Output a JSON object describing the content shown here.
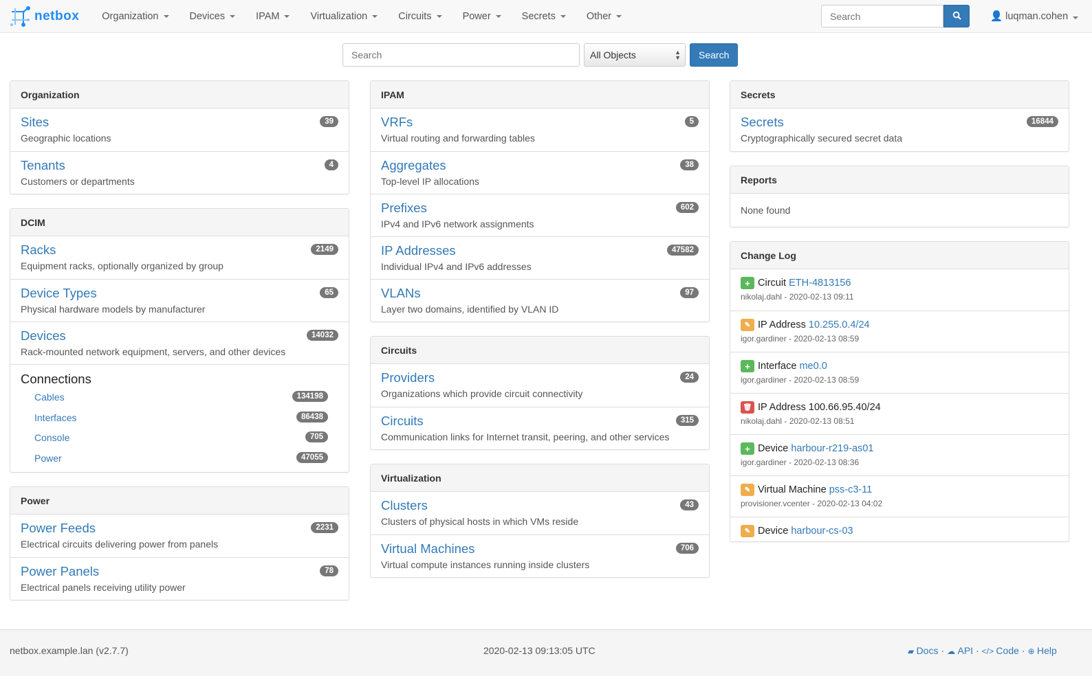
{
  "nav": {
    "brand": "netbox",
    "items": [
      "Organization",
      "Devices",
      "IPAM",
      "Virtualization",
      "Circuits",
      "Power",
      "Secrets",
      "Other"
    ],
    "search_placeholder": "Search",
    "user": "luqman.cohen"
  },
  "search": {
    "placeholder": "Search",
    "scope": "All Objects",
    "button": "Search"
  },
  "columns": [
    [
      {
        "title": "Organization",
        "items": [
          {
            "label": "Sites",
            "desc": "Geographic locations",
            "count": "39"
          },
          {
            "label": "Tenants",
            "desc": "Customers or departments",
            "count": "4"
          }
        ]
      },
      {
        "title": "DCIM",
        "items": [
          {
            "label": "Racks",
            "desc": "Equipment racks, optionally organized by group",
            "count": "2149"
          },
          {
            "label": "Device Types",
            "desc": "Physical hardware models by manufacturer",
            "count": "65"
          },
          {
            "label": "Devices",
            "desc": "Rack-mounted network equipment, servers, and other devices",
            "count": "14032"
          }
        ],
        "connections": {
          "title": "Connections",
          "items": [
            {
              "label": "Cables",
              "count": "134198"
            },
            {
              "label": "Interfaces",
              "count": "86438"
            },
            {
              "label": "Console",
              "count": "705"
            },
            {
              "label": "Power",
              "count": "47055"
            }
          ]
        }
      },
      {
        "title": "Power",
        "items": [
          {
            "label": "Power Feeds",
            "desc": "Electrical circuits delivering power from panels",
            "count": "2231"
          },
          {
            "label": "Power Panels",
            "desc": "Electrical panels receiving utility power",
            "count": "78"
          }
        ]
      }
    ],
    [
      {
        "title": "IPAM",
        "items": [
          {
            "label": "VRFs",
            "desc": "Virtual routing and forwarding tables",
            "count": "5"
          },
          {
            "label": "Aggregates",
            "desc": "Top-level IP allocations",
            "count": "38"
          },
          {
            "label": "Prefixes",
            "desc": "IPv4 and IPv6 network assignments",
            "count": "602"
          },
          {
            "label": "IP Addresses",
            "desc": "Individual IPv4 and IPv6 addresses",
            "count": "47582"
          },
          {
            "label": "VLANs",
            "desc": "Layer two domains, identified by VLAN ID",
            "count": "97"
          }
        ]
      },
      {
        "title": "Circuits",
        "items": [
          {
            "label": "Providers",
            "desc": "Organizations which provide circuit connectivity",
            "count": "24"
          },
          {
            "label": "Circuits",
            "desc": "Communication links for Internet transit, peering, and other services",
            "count": "315"
          }
        ]
      },
      {
        "title": "Virtualization",
        "items": [
          {
            "label": "Clusters",
            "desc": "Clusters of physical hosts in which VMs reside",
            "count": "43"
          },
          {
            "label": "Virtual Machines",
            "desc": "Virtual compute instances running inside clusters",
            "count": "706"
          }
        ]
      }
    ],
    [
      {
        "title": "Secrets",
        "items": [
          {
            "label": "Secrets",
            "desc": "Cryptographically secured secret data",
            "count": "16844"
          }
        ]
      },
      {
        "title": "Reports",
        "empty": "None found"
      }
    ]
  ],
  "changelog": {
    "title": "Change Log",
    "colors": {
      "create": "#5cb85c",
      "update": "#f0ad4e",
      "delete": "#d9534f"
    },
    "items": [
      {
        "action": "create",
        "type": "Circuit",
        "object": "ETH-4813156",
        "linked": true,
        "meta": "nikolaj.dahl - 2020-02-13 09:11"
      },
      {
        "action": "update",
        "type": "IP Address",
        "object": "10.255.0.4/24",
        "linked": true,
        "meta": "igor.gardiner - 2020-02-13 08:59"
      },
      {
        "action": "create",
        "type": "Interface",
        "object": "me0.0",
        "linked": true,
        "meta": "igor.gardiner - 2020-02-13 08:59"
      },
      {
        "action": "delete",
        "type": "IP Address",
        "object": "100.66.95.40/24",
        "linked": false,
        "meta": "nikolaj.dahl - 2020-02-13 08:51"
      },
      {
        "action": "create",
        "type": "Device",
        "object": "harbour-r219-as01",
        "linked": true,
        "meta": "igor.gardiner - 2020-02-13 08:36"
      },
      {
        "action": "update",
        "type": "Virtual Machine",
        "object": "pss-c3-11",
        "linked": true,
        "meta": "provisioner.vcenter - 2020-02-13 04:02"
      },
      {
        "action": "update",
        "type": "Device",
        "object": "harbour-cs-03",
        "linked": true,
        "meta": ""
      }
    ]
  },
  "footer": {
    "host": "netbox.example.lan (v2.7.7)",
    "time": "2020-02-13 09:13:05 UTC",
    "links": [
      {
        "label": "Docs",
        "icon": "book-icon"
      },
      {
        "label": "API",
        "icon": "cloud-icon"
      },
      {
        "label": "Code",
        "icon": "code-icon"
      },
      {
        "label": "Help",
        "icon": "lifebuoy-icon"
      }
    ]
  }
}
